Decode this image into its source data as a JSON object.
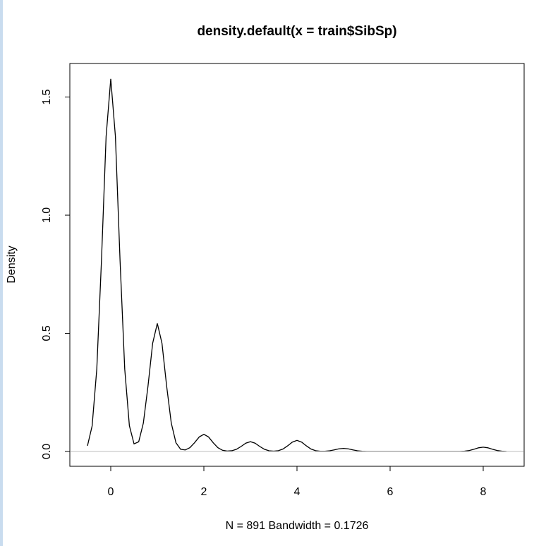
{
  "chart_data": {
    "type": "line",
    "title": "density.default(x = train$SibSp)",
    "xlabel": "N = 891   Bandwidth = 0.1726",
    "ylabel": "Density",
    "x": [
      -0.5,
      -0.4,
      -0.3,
      -0.2,
      -0.1,
      0,
      0.1,
      0.2,
      0.3,
      0.4,
      0.5,
      0.6,
      0.7,
      0.8,
      0.9,
      1,
      1.1,
      1.2,
      1.3,
      1.4,
      1.5,
      1.6,
      1.7,
      1.8,
      1.9,
      2,
      2.1,
      2.2,
      2.3,
      2.4,
      2.5,
      2.6,
      2.7,
      2.8,
      2.9,
      3,
      3.1,
      3.2,
      3.3,
      3.4,
      3.5,
      3.6,
      3.7,
      3.8,
      3.9,
      4,
      4.1,
      4.2,
      4.3,
      4.4,
      4.5,
      4.6,
      4.7,
      4.8,
      4.9,
      5,
      5.1,
      5.2,
      5.3,
      5.4,
      5.5,
      7.5,
      7.6,
      7.7,
      7.8,
      7.9,
      8,
      8.1,
      8.2,
      8.3,
      8.4,
      8.5
    ],
    "series": [
      {
        "name": "Density",
        "color": "#000000",
        "values": [
          0.024,
          0.108,
          0.349,
          0.806,
          1.333,
          1.577,
          1.333,
          0.806,
          0.349,
          0.109,
          0.032,
          0.041,
          0.12,
          0.277,
          0.458,
          0.542,
          0.458,
          0.277,
          0.12,
          0.037,
          0.0093,
          0.0063,
          0.016,
          0.0371,
          0.0613,
          0.0726,
          0.0613,
          0.0371,
          0.016,
          0.005,
          0.0017,
          0.003,
          0.0092,
          0.0212,
          0.0351,
          0.0415,
          0.0351,
          0.0212,
          0.0092,
          0.0029,
          0.0013,
          0.0033,
          0.0103,
          0.0239,
          0.0395,
          0.0467,
          0.0395,
          0.0239,
          0.0103,
          0.0032,
          0.0009,
          0.001,
          0.0029,
          0.0066,
          0.011,
          0.013,
          0.011,
          0.0066,
          0.0029,
          0.0009,
          0.0002,
          0.0003,
          0.0012,
          0.004,
          0.0093,
          0.0154,
          0.0182,
          0.0154,
          0.0093,
          0.004,
          0.0012,
          0.0003
        ]
      }
    ],
    "xlim": [
      -0.879,
      8.879
    ],
    "ylim": [
      -0.0628,
      1.642
    ],
    "xticks": [
      0,
      2,
      4,
      6,
      8
    ],
    "yticks": [
      {
        "value": 0,
        "label": "0.0"
      },
      0.5,
      {
        "value": 1,
        "label": "1.0"
      },
      1.5
    ],
    "zero_line": true,
    "zero_line_color": "#bebebe"
  }
}
